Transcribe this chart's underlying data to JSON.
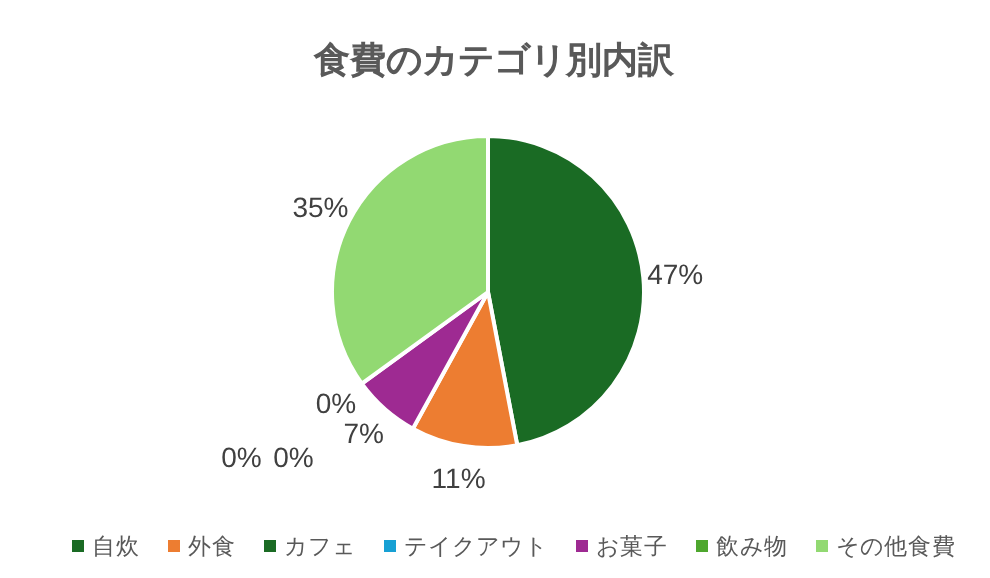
{
  "chart_data": {
    "type": "pie",
    "title": "食費のカテゴリ別内訳",
    "categories": [
      "自炊",
      "外食",
      "カフェ",
      "テイクアウト",
      "お菓子",
      "飲み物",
      "その他食費"
    ],
    "values": [
      47,
      11,
      0,
      0,
      7,
      0,
      35
    ],
    "value_labels": [
      "47%",
      "11%",
      "0%",
      "0%",
      "7%",
      "0%",
      "35%"
    ],
    "colors": [
      "#1a6b24",
      "#ed7d31",
      "#1a6b24",
      "#17a0d4",
      "#9e2a92",
      "#4ea72e",
      "#92d972"
    ],
    "legend": "bottom"
  }
}
